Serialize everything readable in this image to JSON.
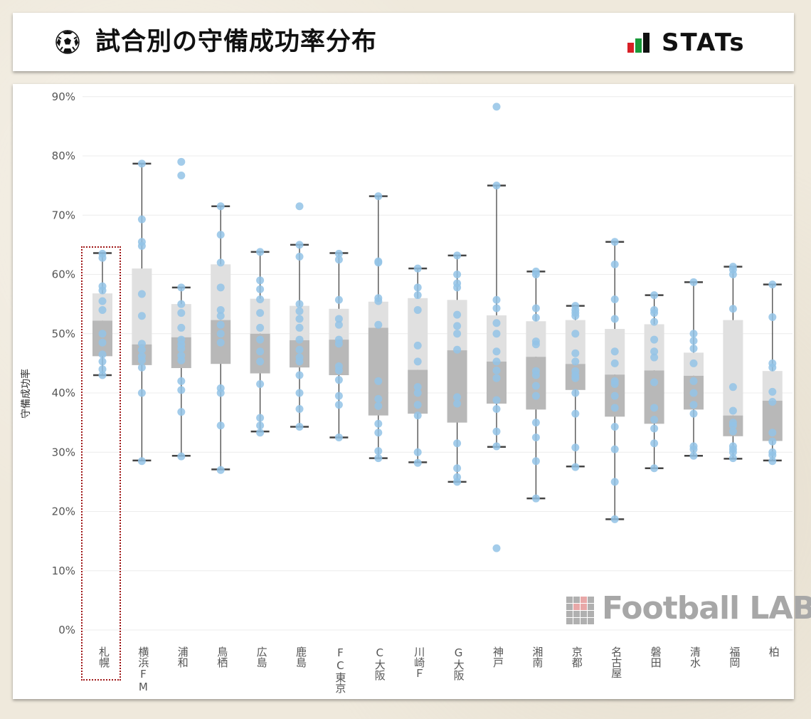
{
  "header": {
    "title": "試合別の守備成功率分布",
    "brand": "STATs"
  },
  "watermark": {
    "text": "Football LAB"
  },
  "colors": {
    "whisker": "#444444",
    "box_upper": "#e0e0e0",
    "box_lower": "#b8b8b8",
    "dot": "#93c3e6",
    "highlight": "#a01818"
  },
  "chart_data": {
    "type": "box",
    "ylabel": "守備成功率",
    "ylim": [
      0,
      92
    ],
    "yticks": [
      "0%",
      "10%",
      "20%",
      "30%",
      "40%",
      "50%",
      "60%",
      "70%",
      "80%",
      "90%"
    ],
    "ytick_values": [
      0,
      10,
      20,
      30,
      40,
      50,
      60,
      70,
      80,
      90
    ],
    "grid": true,
    "highlighted_category": "札幌",
    "categories": [
      "札幌",
      "横浜FM",
      "浦和",
      "鳥栖",
      "広島",
      "鹿島",
      "FC東京",
      "C大阪",
      "川崎Ｆ",
      "G大阪",
      "神戸",
      "湘南",
      "京都",
      "名古屋",
      "磐田",
      "清水",
      "福岡",
      "柏"
    ],
    "boxes": [
      {
        "min": 43.0,
        "q1": 46.2,
        "median": 52.2,
        "q3": 56.8,
        "max": 63.6
      },
      {
        "min": 28.6,
        "q1": 44.7,
        "median": 48.2,
        "q3": 61.0,
        "max": 78.7
      },
      {
        "min": 29.4,
        "q1": 44.2,
        "median": 49.4,
        "q3": 55.0,
        "max": 57.8
      },
      {
        "min": 27.1,
        "q1": 44.9,
        "median": 52.3,
        "q3": 61.7,
        "max": 71.5
      },
      {
        "min": 33.5,
        "q1": 43.3,
        "median": 50.0,
        "q3": 55.9,
        "max": 63.8
      },
      {
        "min": 34.3,
        "q1": 44.3,
        "median": 48.9,
        "q3": 54.7,
        "max": 65.0
      },
      {
        "min": 32.5,
        "q1": 43.0,
        "median": 49.0,
        "q3": 54.2,
        "max": 63.6
      },
      {
        "min": 29.0,
        "q1": 36.2,
        "median": 51.0,
        "q3": 55.4,
        "max": 73.2
      },
      {
        "min": 28.3,
        "q1": 36.5,
        "median": 43.9,
        "q3": 56.0,
        "max": 61.0
      },
      {
        "min": 25.0,
        "q1": 35.0,
        "median": 47.2,
        "q3": 55.7,
        "max": 63.2
      },
      {
        "min": 30.9,
        "q1": 38.2,
        "median": 45.3,
        "q3": 53.1,
        "max": 75.0
      },
      {
        "min": 22.2,
        "q1": 37.2,
        "median": 46.1,
        "q3": 52.1,
        "max": 60.5
      },
      {
        "min": 27.6,
        "q1": 40.5,
        "median": 44.9,
        "q3": 52.3,
        "max": 54.7
      },
      {
        "min": 18.7,
        "q1": 36.0,
        "median": 43.1,
        "q3": 50.8,
        "max": 65.5
      },
      {
        "min": 27.3,
        "q1": 34.8,
        "median": 43.8,
        "q3": 51.6,
        "max": 56.5
      },
      {
        "min": 29.4,
        "q1": 37.2,
        "median": 42.9,
        "q3": 46.8,
        "max": 58.7
      },
      {
        "min": 28.9,
        "q1": 32.7,
        "median": 36.2,
        "q3": 52.3,
        "max": 61.3
      },
      {
        "min": 28.6,
        "q1": 31.9,
        "median": 38.7,
        "q3": 43.7,
        "max": 58.3
      }
    ],
    "points": [
      [
        63.5,
        62.8,
        58.0,
        57.3,
        55.5,
        54.0,
        50.0,
        48.5,
        46.5,
        45.3,
        44.0,
        43.0
      ],
      [
        78.7,
        69.3,
        65.5,
        64.8,
        56.7,
        53.0,
        48.3,
        47.3,
        46.2,
        45.5,
        44.3,
        40.0,
        28.5
      ],
      [
        79.0,
        76.7,
        57.8,
        55.0,
        53.5,
        51.0,
        49.0,
        48.2,
        47.5,
        46.3,
        45.5,
        42.0,
        40.5,
        36.8,
        29.3
      ],
      [
        71.5,
        66.7,
        62.0,
        57.8,
        54.0,
        53.0,
        51.5,
        50.0,
        48.5,
        40.8,
        40.0,
        34.5,
        27.0
      ],
      [
        63.8,
        59.0,
        57.5,
        55.8,
        53.5,
        51.0,
        49.0,
        47.0,
        45.3,
        41.5,
        35.8,
        34.5,
        33.3
      ],
      [
        71.5,
        65.0,
        63.0,
        55.0,
        53.8,
        52.5,
        51.0,
        49.0,
        47.3,
        46.0,
        45.3,
        43.0,
        40.0,
        37.3,
        34.3
      ],
      [
        63.5,
        62.5,
        55.7,
        52.5,
        51.5,
        49.0,
        48.3,
        44.5,
        43.8,
        42.2,
        39.5,
        38.0,
        32.5
      ],
      [
        73.2,
        62.2,
        62.0,
        56.0,
        55.5,
        51.5,
        42.0,
        39.0,
        37.8,
        34.8,
        33.3,
        30.2,
        29.0
      ],
      [
        61.0,
        57.8,
        56.5,
        54.0,
        48.0,
        45.3,
        41.0,
        40.0,
        38.0,
        36.2,
        30.0,
        28.2
      ],
      [
        63.2,
        60.0,
        58.5,
        57.8,
        53.2,
        51.3,
        50.0,
        47.3,
        39.3,
        38.2,
        31.5,
        27.3,
        25.8,
        25.0
      ],
      [
        88.3,
        75.0,
        55.7,
        54.3,
        51.8,
        50.0,
        47.0,
        45.3,
        43.8,
        42.5,
        38.8,
        37.3,
        33.5,
        31.0,
        13.8
      ],
      [
        60.5,
        60.0,
        54.3,
        52.7,
        48.7,
        48.2,
        43.7,
        43.0,
        41.2,
        39.5,
        35.0,
        32.5,
        28.5,
        22.2
      ],
      [
        54.7,
        54.0,
        53.5,
        53.0,
        50.0,
        46.7,
        45.3,
        43.7,
        43.0,
        42.5,
        40.0,
        36.5,
        30.8,
        27.5
      ],
      [
        65.5,
        61.7,
        55.8,
        52.5,
        47.0,
        45.0,
        42.0,
        41.5,
        39.5,
        37.5,
        34.3,
        30.5,
        25.0,
        18.7
      ],
      [
        56.5,
        54.0,
        53.5,
        52.0,
        49.0,
        47.0,
        46.0,
        41.8,
        37.5,
        35.5,
        34.0,
        31.5,
        27.3
      ],
      [
        58.7,
        50.0,
        48.8,
        47.5,
        45.0,
        42.0,
        40.0,
        38.0,
        36.5,
        31.0,
        30.5,
        29.4
      ],
      [
        61.3,
        60.8,
        60.0,
        54.2,
        41.0,
        37.0,
        35.0,
        34.5,
        33.5,
        31.0,
        30.5,
        30.0,
        29.0
      ],
      [
        58.3,
        52.8,
        45.0,
        44.3,
        40.2,
        38.5,
        33.3,
        31.8,
        30.0,
        29.5,
        28.5
      ]
    ]
  }
}
